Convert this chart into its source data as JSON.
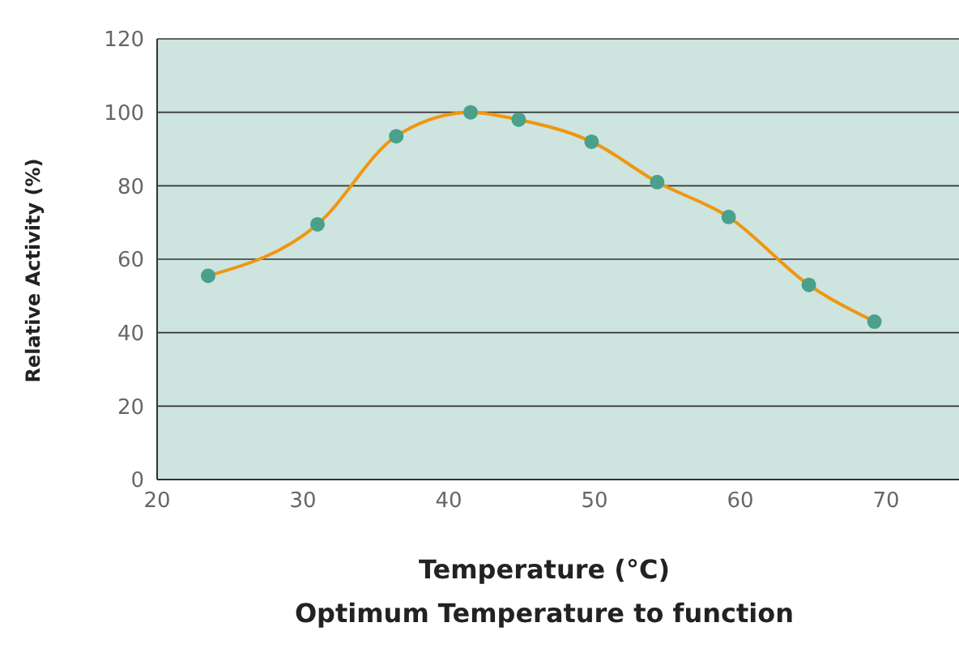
{
  "chart_data": {
    "type": "line",
    "title": "Optimum Temperature to function",
    "xlabel": "Temperature (°C)",
    "ylabel": "Relative Activity (%)",
    "x": [
      23.5,
      31,
      36.4,
      41.5,
      44.8,
      49.8,
      54.3,
      59.2,
      64.7,
      69.2
    ],
    "series": [
      {
        "color": "#f0960f",
        "values": [
          55.5,
          69.5,
          93.5,
          100,
          98,
          92,
          81,
          71.5,
          53,
          43
        ]
      }
    ],
    "xlim": [
      20,
      75
    ],
    "xticks": [
      20,
      30,
      40,
      50,
      60,
      70
    ],
    "ylim": [
      0,
      120
    ],
    "yticks": [
      0,
      20,
      40,
      60,
      80,
      100,
      120
    ],
    "grid": "y",
    "marker": "circle",
    "line_style": "solid",
    "legend": false
  }
}
